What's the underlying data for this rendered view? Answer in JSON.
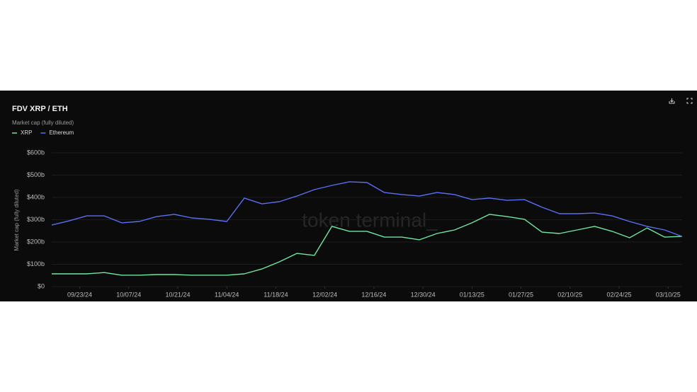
{
  "chart_data": {
    "type": "line",
    "title": "FDV XRP / ETH",
    "subtitle": "Market cap (fully diluted)",
    "y_label": "Market cap (fully diluted)",
    "watermark": "token terminal_",
    "x": [
      "09/15/24",
      "09/20/24",
      "09/25/24",
      "09/30/24",
      "10/05/24",
      "10/10/24",
      "10/15/24",
      "10/20/24",
      "10/25/24",
      "10/30/24",
      "11/04/24",
      "11/09/24",
      "11/14/24",
      "11/19/24",
      "11/24/24",
      "11/29/24",
      "12/04/24",
      "12/09/24",
      "12/14/24",
      "12/19/24",
      "12/24/24",
      "12/29/24",
      "01/03/25",
      "01/08/25",
      "01/13/25",
      "01/18/25",
      "01/23/25",
      "01/28/25",
      "02/02/25",
      "02/07/25",
      "02/12/25",
      "02/17/25",
      "02/22/25",
      "02/27/25",
      "03/04/25",
      "03/09/25",
      "03/14/25"
    ],
    "series": [
      {
        "name": "XRP",
        "color": "#6ee7a0",
        "values": [
          57,
          57,
          57,
          63,
          51,
          51,
          54,
          54,
          51,
          51,
          51,
          57,
          79,
          111,
          149,
          140,
          270,
          248,
          248,
          222,
          222,
          210,
          238,
          254,
          286,
          324,
          314,
          302,
          244,
          238,
          254,
          270,
          248,
          219,
          263,
          222,
          225
        ]
      },
      {
        "name": "Ethereum",
        "color": "#5b6ef5",
        "values": [
          276,
          295,
          317,
          317,
          286,
          292,
          314,
          324,
          308,
          302,
          292,
          397,
          371,
          381,
          406,
          435,
          454,
          470,
          467,
          422,
          413,
          406,
          422,
          413,
          390,
          397,
          387,
          390,
          356,
          327,
          327,
          330,
          317,
          292,
          270,
          254,
          225
        ]
      }
    ],
    "xlim": [
      "09/15/24",
      "03/14/25"
    ],
    "xticks": [
      "09/23/24",
      "10/07/24",
      "10/21/24",
      "11/04/24",
      "11/18/24",
      "12/02/24",
      "12/16/24",
      "12/30/24",
      "01/13/25",
      "01/27/25",
      "02/10/25",
      "02/24/25",
      "03/10/25"
    ],
    "ylim": [
      0,
      600
    ],
    "yticks": [
      {
        "value": 0,
        "label": "$0"
      },
      {
        "value": 100,
        "label": "$100b"
      },
      {
        "value": 200,
        "label": "$200b"
      },
      {
        "value": 300,
        "label": "$300b"
      },
      {
        "value": 400,
        "label": "$400b"
      },
      {
        "value": 500,
        "label": "$500b"
      },
      {
        "value": 600,
        "label": "$600b"
      }
    ],
    "grid": true
  }
}
